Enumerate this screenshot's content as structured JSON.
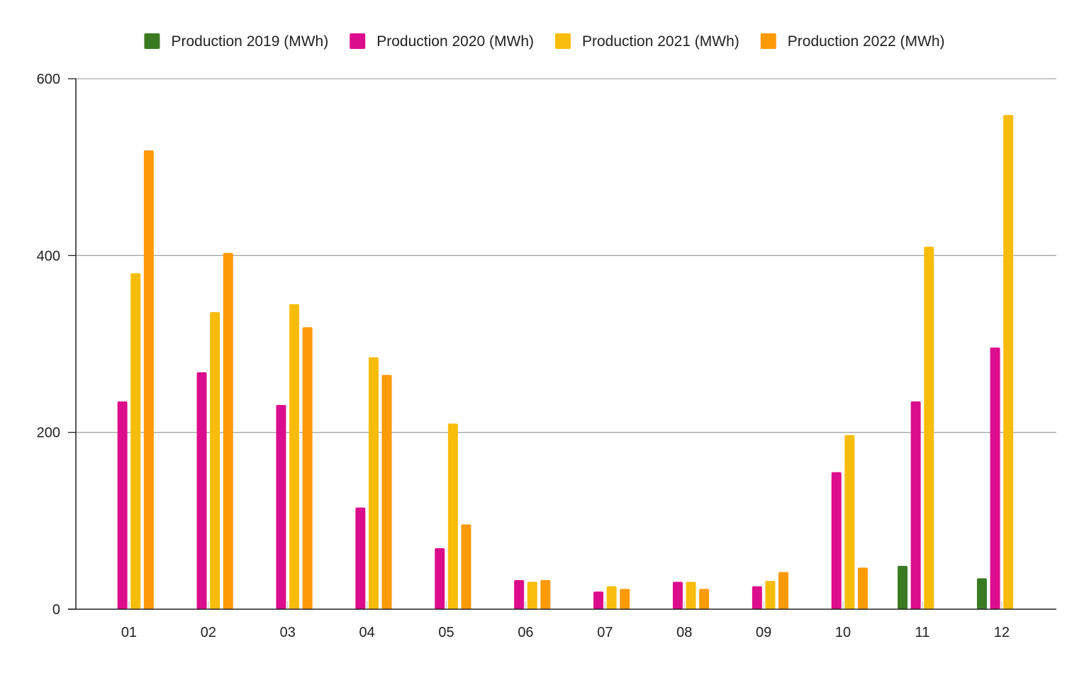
{
  "chart_data": {
    "type": "bar",
    "title": "",
    "xlabel": "",
    "ylabel": "",
    "categories": [
      "01",
      "02",
      "03",
      "04",
      "05",
      "06",
      "07",
      "08",
      "09",
      "10",
      "11",
      "12"
    ],
    "ylim": [
      0,
      600
    ],
    "yticks": [
      0,
      200,
      400,
      600
    ],
    "grid": true,
    "legend_position": "top",
    "series": [
      {
        "name": "Production 2019 (MWh)",
        "color": "#3a7a22",
        "values": [
          null,
          null,
          null,
          null,
          null,
          null,
          null,
          null,
          null,
          null,
          49,
          35
        ]
      },
      {
        "name": "Production 2020 (MWh)",
        "color": "#dc0d8c",
        "values": [
          235,
          268,
          231,
          115,
          69,
          33,
          20,
          31,
          26,
          155,
          235,
          296
        ]
      },
      {
        "name": "Production 2021 (MWh)",
        "color": "#f8bc0c",
        "values": [
          380,
          336,
          345,
          285,
          210,
          31,
          26,
          31,
          32,
          197,
          410,
          559
        ]
      },
      {
        "name": "Production 2022 (MWh)",
        "color": "#fc9a08",
        "values": [
          519,
          403,
          319,
          265,
          96,
          33,
          23,
          23,
          42,
          47,
          null,
          null
        ]
      }
    ]
  }
}
